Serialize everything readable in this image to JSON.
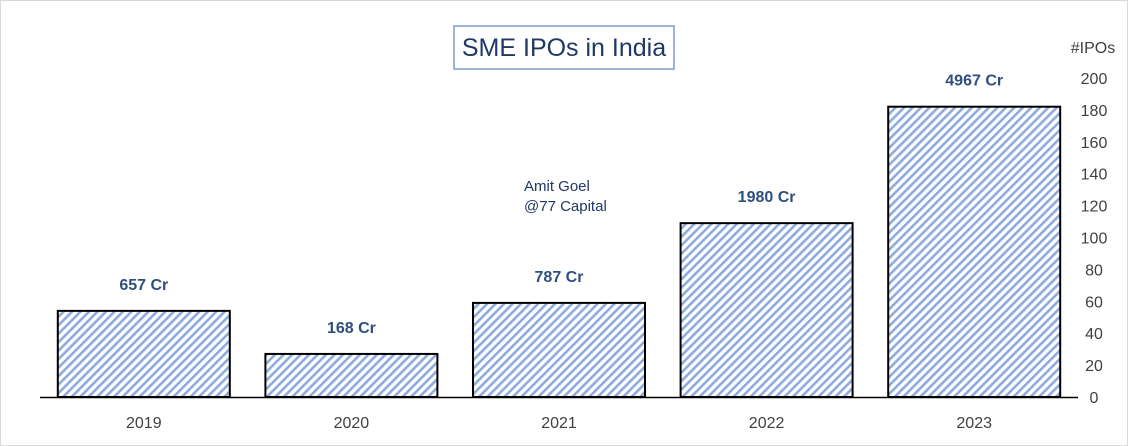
{
  "chart_data": {
    "type": "bar",
    "title": "SME IPOs in India",
    "ylabel": "#IPOs",
    "categories": [
      "2019",
      "2020",
      "2021",
      "2022",
      "2023"
    ],
    "values": [
      54,
      27,
      59,
      109,
      182
    ],
    "data_labels": [
      "657 Cr",
      "168 Cr",
      "787 Cr",
      "1980 Cr",
      "4967 Cr"
    ],
    "ylim": [
      0,
      200
    ],
    "yticks": [
      0,
      20,
      40,
      60,
      80,
      100,
      120,
      140,
      160,
      180,
      200
    ],
    "y_axis_side": "right",
    "grid": false,
    "annotation": [
      "Amit Goel",
      "@77 Capital"
    ]
  },
  "colors": {
    "hatch": "#8faadc",
    "bar_border": "#000000",
    "title_border": "#7f9ec9",
    "label": "#2f4f7f"
  }
}
